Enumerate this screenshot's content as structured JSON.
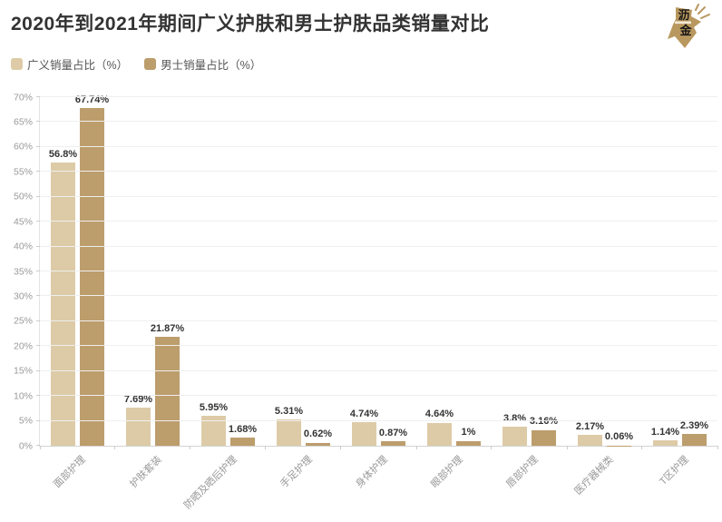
{
  "header": {
    "title": "2020年到2021年期间广义护肤和男士护肤品类销量对比",
    "logo_char_top": "沥",
    "logo_char_bottom": "金"
  },
  "legend": [
    {
      "label": "广义销量占比（%）",
      "color": "#ddcba7"
    },
    {
      "label": "男士销量占比（%）",
      "color": "#bc9d6c"
    }
  ],
  "chart_data": {
    "type": "bar",
    "title": "2020年到2021年期间广义护肤和男士护肤品类销量对比",
    "categories": [
      "面部护理",
      "护肤套装",
      "防晒及晒后护理",
      "手足护理",
      "身体护理",
      "眼部护理",
      "唇部护理",
      "医疗器械类",
      "T区护理"
    ],
    "series": [
      {
        "name": "广义销量占比（%）",
        "color": "#ddcba7",
        "values": [
          56.8,
          7.69,
          5.95,
          5.31,
          4.74,
          4.64,
          3.8,
          2.17,
          1.14
        ],
        "labels": [
          "56.8%",
          "7.69%",
          "5.95%",
          "5.31%",
          "4.74%",
          "4.64%",
          "3.8%",
          "2.17%",
          "1.14%"
        ]
      },
      {
        "name": "男士销量占比（%）",
        "color": "#bc9d6c",
        "values": [
          67.74,
          21.87,
          1.68,
          0.62,
          0.87,
          1,
          3.16,
          0.06,
          2.39
        ],
        "labels": [
          "67.74%",
          "21.87%",
          "1.68%",
          "0.62%",
          "0.87%",
          "1%",
          "3.16%",
          "0.06%",
          "2.39%"
        ]
      }
    ],
    "y_axis": {
      "min": 0,
      "max": 70,
      "step": 5,
      "unit": "%",
      "tick_labels": [
        "0%",
        "5%",
        "10%",
        "15%",
        "20%",
        "25%",
        "30%",
        "35%",
        "40%",
        "45%",
        "50%",
        "55%",
        "60%",
        "65%",
        "70%"
      ]
    },
    "x_axis": {
      "label_rotation": -45
    },
    "grid": "horizontal",
    "legend_position": "top-left"
  },
  "colors": {
    "background": "#ffffff",
    "bar_light": "#ddcba7",
    "bar_dark": "#bc9d6c",
    "title_text": "#333333",
    "legend_text": "#555555",
    "axis_text": "#999999",
    "grid_line": "#efefef",
    "axis_line": "#d4d4d4",
    "data_label": "#333333",
    "logo_gold": "#b9985f"
  }
}
